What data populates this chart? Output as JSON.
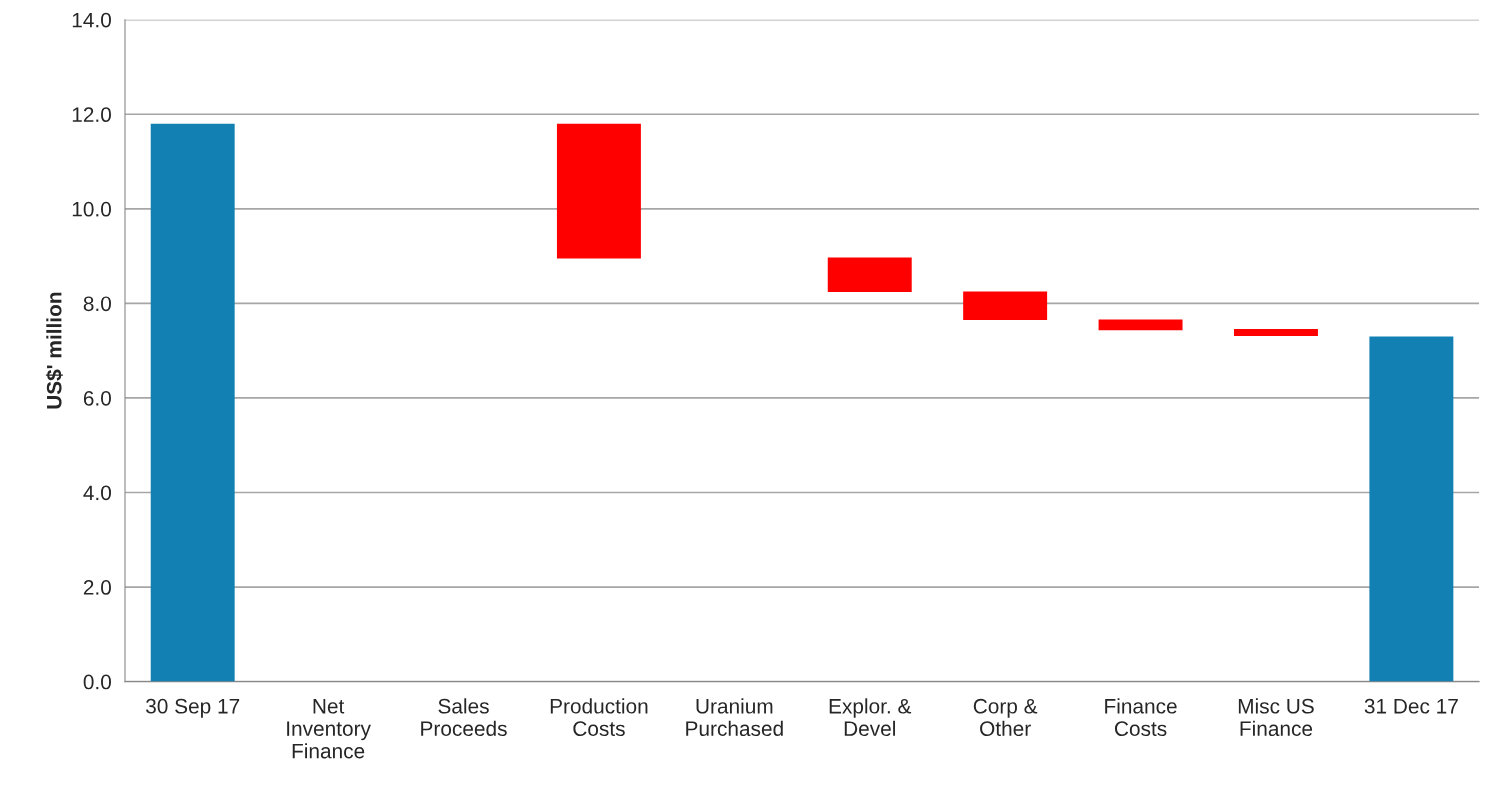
{
  "chart_data": {
    "type": "bar",
    "ylabel": "US$' million",
    "categories": [
      "30 Sep 17",
      "Net\nInventory\nFinance",
      "Sales\nProceeds",
      "Production\nCosts",
      "Uranium\nPurchased",
      "Explor. &\nDevel",
      "Corp &\nOther",
      "Finance\nCosts",
      "Misc US\nFinance",
      "31 Dec 17"
    ],
    "values": [
      11.8,
      null,
      null,
      -2.85,
      null,
      -0.73,
      -0.6,
      -0.23,
      -0.15,
      7.3
    ],
    "base": [
      0,
      null,
      null,
      11.8,
      null,
      8.97,
      8.25,
      7.66,
      7.46,
      0
    ],
    "colors": [
      "#1380b4",
      null,
      null,
      "#ff0000",
      null,
      "#ff0000",
      "#ff0000",
      "#ff0000",
      "#ff0000",
      "#1380b4"
    ],
    "ylim": [
      0,
      14
    ],
    "yticks": [
      {
        "value": 0,
        "label": "0.0"
      },
      {
        "value": 2,
        "label": "2.0"
      },
      {
        "value": 4,
        "label": "4.0"
      },
      {
        "value": 6,
        "label": "6.0"
      },
      {
        "value": 8,
        "label": "8.0"
      },
      {
        "value": 10,
        "label": "10.0"
      },
      {
        "value": 12,
        "label": "12.0"
      },
      {
        "value": 14,
        "label": "14.0"
      }
    ],
    "grid": "y"
  }
}
